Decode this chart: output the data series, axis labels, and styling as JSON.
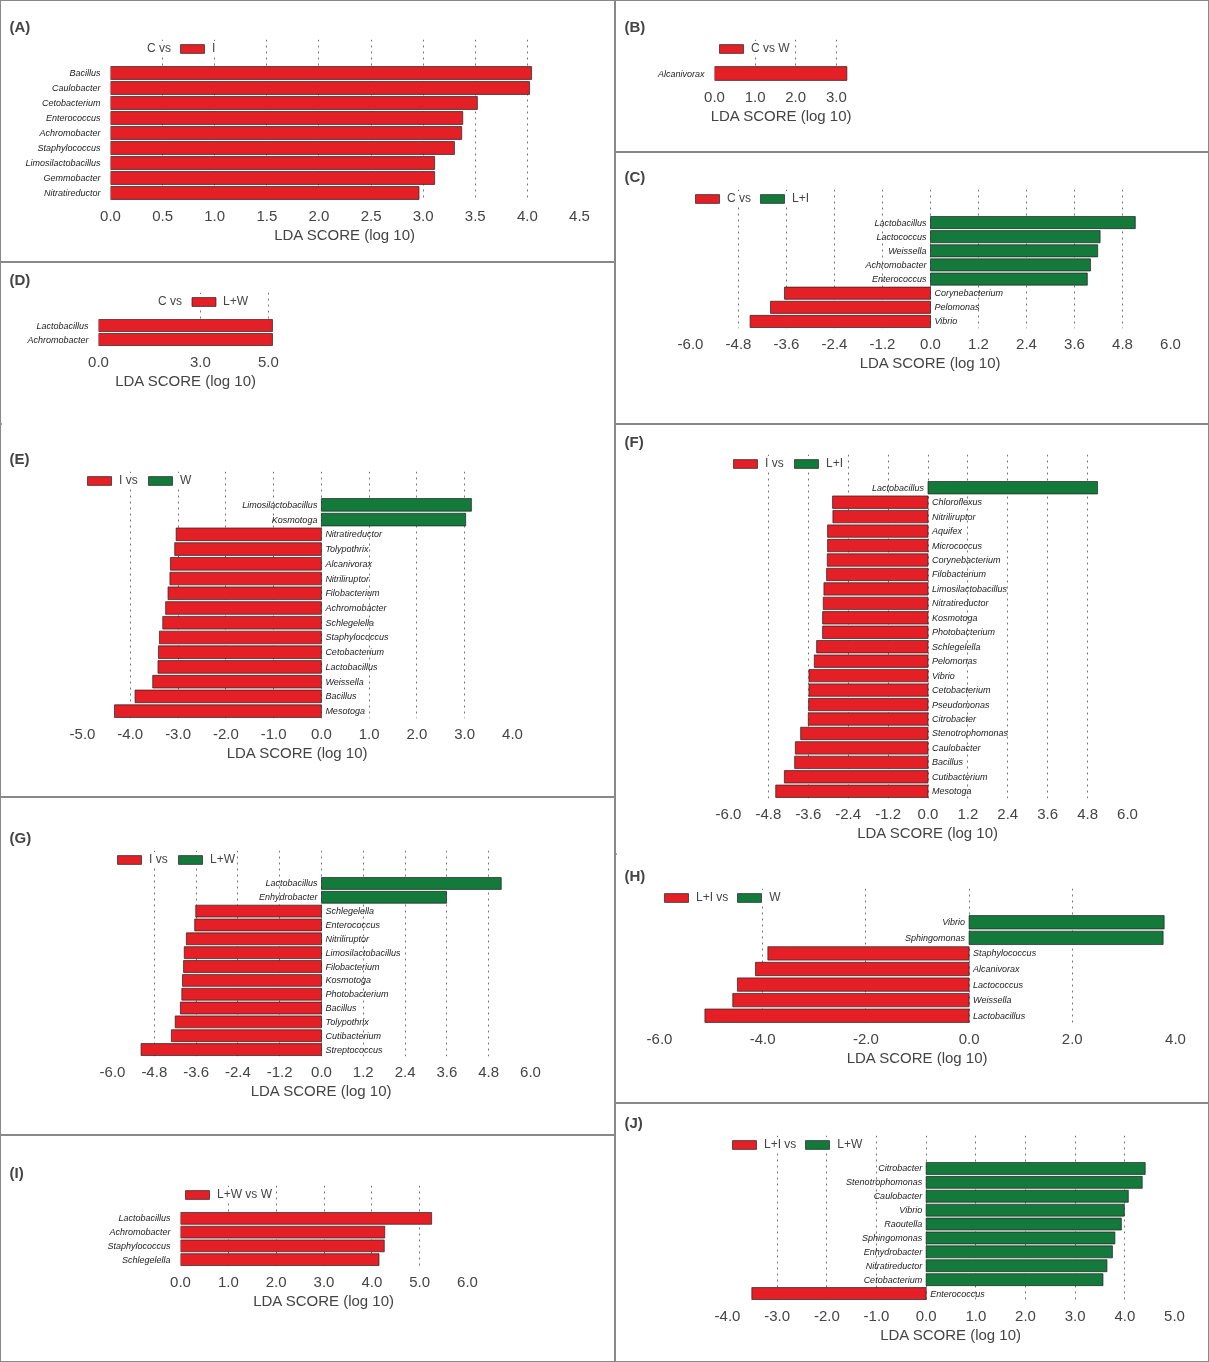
{
  "chart_data": [
    {
      "type": "bar",
      "orientation": "horizontal",
      "title": "(A)",
      "legend_title": "C vs",
      "xlabel": "LDA SCORE (log 10)",
      "legend": "top left",
      "grid": "x",
      "categories": [
        "Bacillus",
        "Caulobacter",
        "Cetobacterium",
        "Enterococcus",
        "Achromobacter",
        "Staphylococcus",
        "Limosilactobacillus",
        "Gemmobacter",
        "Nitratireductor"
      ],
      "series": [
        {
          "name": "I",
          "color": "#e41f26",
          "values": [
            4.04,
            4.02,
            3.52,
            3.38,
            3.37,
            3.3,
            3.11,
            3.11,
            2.96
          ]
        }
      ],
      "xlim": [
        0,
        4.5
      ],
      "xticks": [
        {
          "value": 0,
          "label": "0.0"
        },
        {
          "value": 0.5,
          "label": "0.5"
        },
        {
          "value": 1,
          "label": "1.0"
        },
        {
          "value": 1.5,
          "label": "1.5"
        },
        {
          "value": 2,
          "label": "2.0"
        },
        {
          "value": 2.5,
          "label": "2.5"
        },
        {
          "value": 3,
          "label": "3.0"
        },
        {
          "value": 3.5,
          "label": "3.5"
        },
        {
          "value": 4,
          "label": "4.0"
        },
        {
          "value": 4.5,
          "label": "4.5"
        }
      ]
    },
    {
      "type": "bar",
      "orientation": "horizontal",
      "title": "(B)",
      "xlabel": "LDA SCORE (log 10)",
      "legend": "top left",
      "grid": "x",
      "categories": [
        "Alcanivorax"
      ],
      "series": [
        {
          "name": "C vs W",
          "color": "#e41f26",
          "values": [
            3.26
          ]
        }
      ],
      "xlim": [
        0,
        3.3
      ],
      "xticks": [
        {
          "value": 0,
          "label": "0.0"
        },
        {
          "value": 1,
          "label": "1.0"
        },
        {
          "value": 2,
          "label": "2.0"
        },
        {
          "value": 3,
          "label": "3.0"
        }
      ]
    },
    {
      "type": "bar",
      "orientation": "horizontal",
      "title": "(C)",
      "xlabel": "LDA SCORE (log 10)",
      "legend": "top left",
      "grid": "x",
      "categories": [
        "Lactobacillus",
        "Lactococcus",
        "Weissella",
        "Achromobacter",
        "Enterococcus",
        "Corynebacterium",
        "Pelomonas",
        "Vibrio"
      ],
      "series": [
        {
          "name": "C vs",
          "color": "#e41f26",
          "values": [
            null,
            null,
            null,
            null,
            null,
            -3.65,
            -4.0,
            -4.51
          ]
        },
        {
          "name": "L+I",
          "color": "#137a3c",
          "values": [
            5.12,
            4.24,
            4.18,
            4.0,
            3.92,
            null,
            null,
            null
          ]
        }
      ],
      "xlim": [
        -6,
        6
      ],
      "xticks": [
        {
          "value": -6,
          "label": "-6.0"
        },
        {
          "value": -4.8,
          "label": "-4.8"
        },
        {
          "value": -3.6,
          "label": "-3.6"
        },
        {
          "value": -2.4,
          "label": "-2.4"
        },
        {
          "value": -1.2,
          "label": "-1.2"
        },
        {
          "value": 0,
          "label": "0.0"
        },
        {
          "value": 1.2,
          "label": "1.2"
        },
        {
          "value": 2.4,
          "label": "2.4"
        },
        {
          "value": 3.6,
          "label": "3.6"
        },
        {
          "value": 4.8,
          "label": "4.8"
        },
        {
          "value": 6,
          "label": "6.0"
        }
      ]
    },
    {
      "type": "bar",
      "orientation": "horizontal",
      "title": "(D)",
      "legend_title": "C vs",
      "xlabel": "LDA SCORE (log 10)",
      "legend": "top",
      "grid": "x",
      "categories": [
        "Lactobacillus",
        "Achromobacter"
      ],
      "series": [
        {
          "name": "L+W",
          "color": "#e41f26",
          "values": [
            5.12,
            5.12
          ]
        }
      ],
      "xlim": [
        0,
        5.15
      ],
      "xticks": [
        {
          "value": 0,
          "label": "0.0"
        },
        {
          "value": 3,
          "label": "3.0"
        },
        {
          "value": 5,
          "label": "5.0"
        }
      ]
    },
    {
      "type": "bar",
      "orientation": "horizontal",
      "title": "(E)",
      "xlabel": "LDA SCORE (log 10)",
      "legend": "top left",
      "grid": "x",
      "categories": [
        "Limosilactobacillus",
        "Kosmotoga",
        "Nitratireductor",
        "Tolypothrix",
        "Alcanivorax",
        "Nitriliruptor",
        "Filobacterium",
        "Achromobacter",
        "Schlegelella",
        "Staphylococcus",
        "Cetobacterium",
        "Lactobacillus",
        "Weissella",
        "Bacillus",
        "Mesotoga"
      ],
      "series": [
        {
          "name": "I vs",
          "color": "#e41f26",
          "values": [
            null,
            null,
            -3.04,
            -3.07,
            -3.16,
            -3.17,
            -3.21,
            -3.26,
            -3.32,
            -3.39,
            -3.41,
            -3.42,
            -3.53,
            -3.9,
            -4.33
          ]
        },
        {
          "name": "W",
          "color": "#137a3c",
          "values": [
            3.14,
            3.02,
            null,
            null,
            null,
            null,
            null,
            null,
            null,
            null,
            null,
            null,
            null,
            null,
            null
          ]
        }
      ],
      "xlim": [
        -5,
        4
      ],
      "xticks": [
        {
          "value": -5,
          "label": "-5.0"
        },
        {
          "value": -4,
          "label": "-4.0"
        },
        {
          "value": -3,
          "label": "-3.0"
        },
        {
          "value": -2,
          "label": "-2.0"
        },
        {
          "value": -1,
          "label": "-1.0"
        },
        {
          "value": 0,
          "label": "0.0"
        },
        {
          "value": 1,
          "label": "1.0"
        },
        {
          "value": 2,
          "label": "2.0"
        },
        {
          "value": 3,
          "label": "3.0"
        },
        {
          "value": 4,
          "label": "4.0"
        }
      ]
    },
    {
      "type": "bar",
      "orientation": "horizontal",
      "title": "(F)",
      "xlabel": "LDA SCORE (log 10)",
      "legend": "top left",
      "grid": "x",
      "categories": [
        "Lactobacillus",
        "Chloroflexus",
        "Nitriliruptor",
        "Aquifex",
        "Micrococcus",
        "Corynebacterium",
        "Filobacterium",
        "Limosilactobacillus",
        "Nitratireductor",
        "Kosmotoga",
        "Photobacterium",
        "Schlegelella",
        "Pelomonas",
        "Vibrio",
        "Cetobacterium",
        "Pseudomonas",
        "Citrobacter",
        "Stenotrophomonas",
        "Caulobacter",
        "Bacillus",
        "Cutibacterium",
        "Mesotoga"
      ],
      "series": [
        {
          "name": "I vs",
          "color": "#e41f26",
          "values": [
            null,
            -2.87,
            -2.86,
            -3.02,
            -3.02,
            -3.03,
            -3.05,
            -3.13,
            -3.15,
            -3.17,
            -3.17,
            -3.35,
            -3.42,
            -3.58,
            -3.58,
            -3.59,
            -3.6,
            -3.83,
            -3.99,
            -4.01,
            -4.32,
            -4.58
          ]
        },
        {
          "name": "L+I",
          "color": "#137a3c",
          "values": [
            5.1,
            null,
            null,
            null,
            null,
            null,
            null,
            null,
            null,
            null,
            null,
            null,
            null,
            null,
            null,
            null,
            null,
            null,
            null,
            null,
            null,
            null
          ]
        }
      ],
      "xlim": [
        -6,
        6
      ],
      "xticks": [
        {
          "value": -6,
          "label": "-6.0"
        },
        {
          "value": -4.8,
          "label": "-4.8"
        },
        {
          "value": -3.6,
          "label": "-3.6"
        },
        {
          "value": -2.4,
          "label": "-2.4"
        },
        {
          "value": -1.2,
          "label": "-1.2"
        },
        {
          "value": 0,
          "label": "0.0"
        },
        {
          "value": 1.2,
          "label": "1.2"
        },
        {
          "value": 2.4,
          "label": "2.4"
        },
        {
          "value": 3.6,
          "label": "3.6"
        },
        {
          "value": 4.8,
          "label": "4.8"
        },
        {
          "value": 6,
          "label": "6.0"
        }
      ]
    },
    {
      "type": "bar",
      "orientation": "horizontal",
      "title": "(G)",
      "xlabel": "LDA SCORE (log 10)",
      "legend": "top left",
      "grid": "x",
      "categories": [
        "Lactobacillus",
        "Enhydrobacter",
        "Schlegelella",
        "Enterococcus",
        "Nitriliruptor",
        "Limosilactobacillus",
        "Filobacterium",
        "Kosmotoga",
        "Photobacterium",
        "Bacillus",
        "Tolypothrix",
        "Cutibacterium",
        "Streptococcus"
      ],
      "series": [
        {
          "name": "I vs",
          "color": "#e41f26",
          "values": [
            null,
            null,
            -3.61,
            -3.64,
            -3.88,
            -3.94,
            -3.96,
            -3.99,
            -4.01,
            -4.05,
            -4.2,
            -4.31,
            -5.18
          ]
        },
        {
          "name": "L+W",
          "color": "#137a3c",
          "values": [
            5.16,
            3.59,
            null,
            null,
            null,
            null,
            null,
            null,
            null,
            null,
            null,
            null,
            null
          ]
        }
      ],
      "xlim": [
        -6,
        6
      ],
      "xticks": [
        {
          "value": -6,
          "label": "-6.0"
        },
        {
          "value": -4.8,
          "label": "-4.8"
        },
        {
          "value": -3.6,
          "label": "-3.6"
        },
        {
          "value": -2.4,
          "label": "-2.4"
        },
        {
          "value": -1.2,
          "label": "-1.2"
        },
        {
          "value": 0,
          "label": "0.0"
        },
        {
          "value": 1.2,
          "label": "1.2"
        },
        {
          "value": 2.4,
          "label": "2.4"
        },
        {
          "value": 3.6,
          "label": "3.6"
        },
        {
          "value": 4.8,
          "label": "4.8"
        },
        {
          "value": 6,
          "label": "6.0"
        }
      ]
    },
    {
      "type": "bar",
      "orientation": "horizontal",
      "title": "(H)",
      "xlabel": "LDA SCORE (log 10)",
      "legend": "top left",
      "grid": "x",
      "categories": [
        "Vibrio",
        "Sphingomonas",
        "Staphylococcus",
        "Alcanivorax",
        "Lactococcus",
        "Weissella",
        "Lactobacillus"
      ],
      "series": [
        {
          "name": "L+I vs",
          "color": "#e41f26",
          "values": [
            null,
            null,
            -3.9,
            -4.14,
            -4.49,
            -4.58,
            -5.12
          ]
        },
        {
          "name": "W",
          "color": "#137a3c",
          "values": [
            3.78,
            3.76,
            null,
            null,
            null,
            null,
            null
          ]
        }
      ],
      "xlim": [
        -6,
        4
      ],
      "xticks": [
        {
          "value": -6,
          "label": "-6.0"
        },
        {
          "value": -4,
          "label": "-4.0"
        },
        {
          "value": -2,
          "label": "-2.0"
        },
        {
          "value": 0,
          "label": "0.0"
        },
        {
          "value": 2,
          "label": "2.0"
        },
        {
          "value": 4,
          "label": "4.0"
        }
      ]
    },
    {
      "type": "bar",
      "orientation": "horizontal",
      "title": "(I)",
      "xlabel": "LDA SCORE (log 10)",
      "legend": "top left",
      "grid": "x",
      "categories": [
        "Lactobacillus",
        "Achromobacter",
        "Staphylococcus",
        "Schlegelella"
      ],
      "series": [
        {
          "name": "L+W vs W",
          "color": "#e41f26",
          "values": [
            5.25,
            4.27,
            4.26,
            4.15
          ]
        }
      ],
      "xlim": [
        0,
        6
      ],
      "xticks": [
        {
          "value": 0,
          "label": "0.0"
        },
        {
          "value": 1,
          "label": "1.0"
        },
        {
          "value": 2,
          "label": "2.0"
        },
        {
          "value": 3,
          "label": "3.0"
        },
        {
          "value": 4,
          "label": "4.0"
        },
        {
          "value": 5,
          "label": "5.0"
        },
        {
          "value": 6,
          "label": "6.0"
        }
      ]
    },
    {
      "type": "bar",
      "orientation": "horizontal",
      "title": "(J)",
      "xlabel": "LDA SCORE (log 10)",
      "legend": "top left",
      "grid": "x",
      "categories": [
        "Citrobacter",
        "Stenotrophomonas",
        "Caulobacter",
        "Vibrio",
        "Raoutella",
        "Sphingomonas",
        "Enhydrobacter",
        "Nitratireductor",
        "Cetobacterium",
        "Enterococcus"
      ],
      "series": [
        {
          "name": "L+I vs",
          "color": "#e41f26",
          "values": [
            null,
            null,
            null,
            null,
            null,
            null,
            null,
            null,
            null,
            -3.51
          ]
        },
        {
          "name": "L+W",
          "color": "#137a3c",
          "values": [
            4.41,
            4.35,
            4.07,
            3.99,
            3.93,
            3.8,
            3.75,
            3.64,
            3.56,
            null
          ]
        }
      ],
      "xlim": [
        -4,
        5
      ],
      "xticks": [
        {
          "value": -4,
          "label": "-4.0"
        },
        {
          "value": -3,
          "label": "-3.0"
        },
        {
          "value": -2,
          "label": "-2.0"
        },
        {
          "value": -1,
          "label": "-1.0"
        },
        {
          "value": 0,
          "label": "0.0"
        },
        {
          "value": 1,
          "label": "1.0"
        },
        {
          "value": 2,
          "label": "2.0"
        },
        {
          "value": 3,
          "label": "3.0"
        },
        {
          "value": 4,
          "label": "4.0"
        },
        {
          "value": 5,
          "label": "5.0"
        }
      ]
    }
  ]
}
